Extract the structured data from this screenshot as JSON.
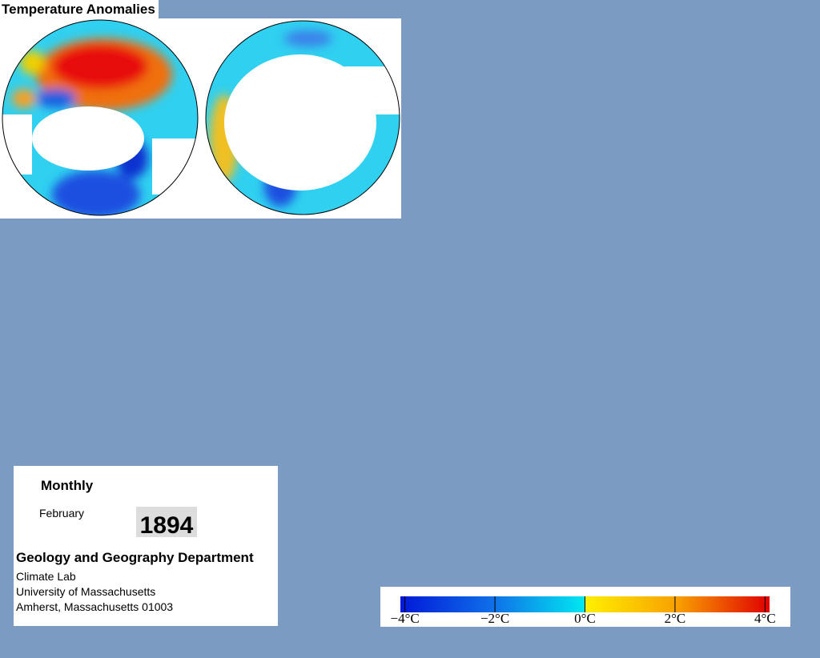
{
  "title": "Temperature Anomalies",
  "panel": {
    "heading": "Monthly",
    "month": "February",
    "year": "1894",
    "department": "Geology and Geography Department",
    "lines": [
      "Climate Lab",
      "University of Massachusetts",
      "Amherst, Massachusetts 01003"
    ]
  },
  "colorbar": {
    "range": [
      -4.1,
      4.1
    ],
    "ticks": [
      {
        "value": -4,
        "label": "−4°C"
      },
      {
        "value": -2,
        "label": "−2°C"
      },
      {
        "value": 0,
        "label": "0°C"
      },
      {
        "value": 2,
        "label": "2°C"
      },
      {
        "value": 4,
        "label": "4°C"
      }
    ]
  }
}
